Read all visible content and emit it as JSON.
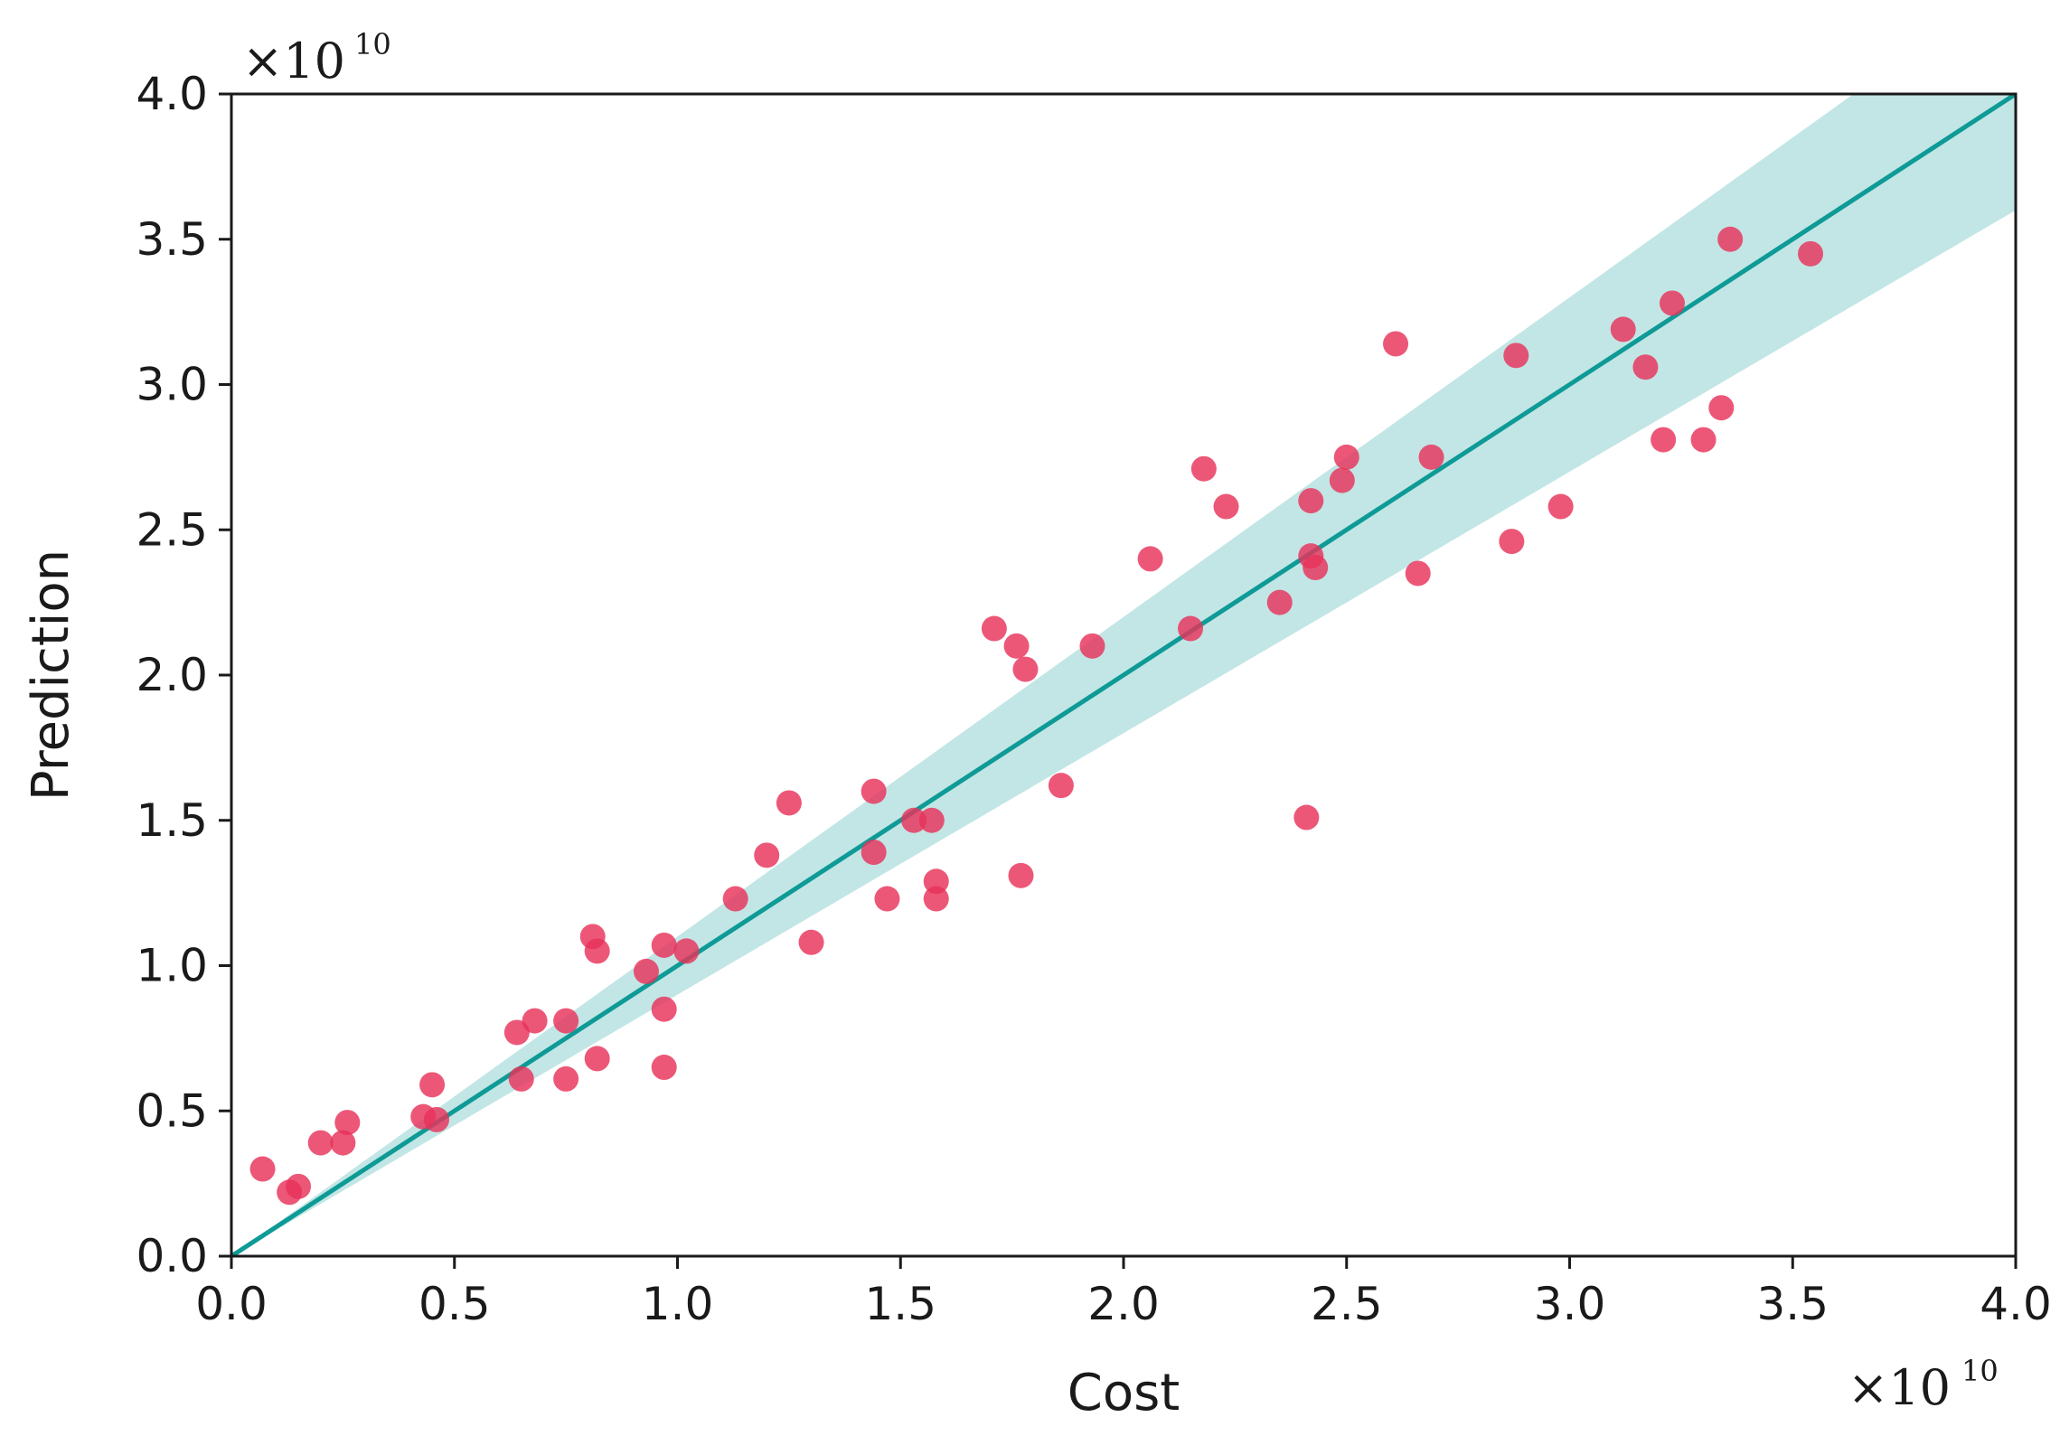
{
  "chart_data": {
    "type": "scatter",
    "title": "",
    "xlabel": "Cost",
    "ylabel": "Prediction",
    "x_scale_label": "×10",
    "x_scale_exp": "10",
    "y_scale_label": "×10",
    "y_scale_exp": "10",
    "xlim": [
      0,
      4.0
    ],
    "ylim": [
      0,
      4.0
    ],
    "xticks": [
      "0.0",
      "0.5",
      "1.0",
      "1.5",
      "2.0",
      "2.5",
      "3.0",
      "3.5",
      "4.0"
    ],
    "yticks": [
      "0.0",
      "0.5",
      "1.0",
      "1.5",
      "2.0",
      "2.5",
      "3.0",
      "3.5",
      "4.0"
    ],
    "grid": false,
    "colors": {
      "points": "#e8325a",
      "line": "#0e9a96",
      "band": "#8fd2d0"
    },
    "reference_line": {
      "x": [
        0,
        4.0
      ],
      "y": [
        0,
        4.0
      ]
    },
    "band": {
      "lower_slope": 0.9,
      "upper_slope": 1.1
    },
    "points": [
      [
        0.07,
        0.3
      ],
      [
        0.13,
        0.22
      ],
      [
        0.15,
        0.24
      ],
      [
        0.2,
        0.39
      ],
      [
        0.25,
        0.39
      ],
      [
        0.26,
        0.46
      ],
      [
        0.43,
        0.48
      ],
      [
        0.45,
        0.59
      ],
      [
        0.46,
        0.47
      ],
      [
        0.64,
        0.77
      ],
      [
        0.65,
        0.61
      ],
      [
        0.68,
        0.81
      ],
      [
        0.75,
        0.81
      ],
      [
        0.75,
        0.61
      ],
      [
        0.81,
        1.1
      ],
      [
        0.82,
        1.05
      ],
      [
        0.82,
        0.68
      ],
      [
        0.93,
        0.98
      ],
      [
        0.97,
        1.07
      ],
      [
        0.97,
        0.85
      ],
      [
        0.97,
        0.65
      ],
      [
        1.02,
        1.05
      ],
      [
        1.13,
        1.23
      ],
      [
        1.2,
        1.38
      ],
      [
        1.25,
        1.56
      ],
      [
        1.3,
        1.08
      ],
      [
        1.44,
        1.6
      ],
      [
        1.44,
        1.39
      ],
      [
        1.47,
        1.23
      ],
      [
        1.53,
        1.5
      ],
      [
        1.57,
        1.5
      ],
      [
        1.58,
        1.29
      ],
      [
        1.58,
        1.23
      ],
      [
        1.71,
        2.16
      ],
      [
        1.76,
        2.1
      ],
      [
        1.77,
        1.31
      ],
      [
        1.78,
        2.02
      ],
      [
        1.86,
        1.62
      ],
      [
        1.93,
        2.1
      ],
      [
        2.06,
        2.4
      ],
      [
        2.15,
        2.16
      ],
      [
        2.18,
        2.71
      ],
      [
        2.23,
        2.58
      ],
      [
        2.35,
        2.25
      ],
      [
        2.41,
        1.51
      ],
      [
        2.42,
        2.6
      ],
      [
        2.42,
        2.41
      ],
      [
        2.43,
        2.37
      ],
      [
        2.49,
        2.67
      ],
      [
        2.5,
        2.75
      ],
      [
        2.61,
        3.14
      ],
      [
        2.66,
        2.35
      ],
      [
        2.69,
        2.75
      ],
      [
        2.87,
        2.46
      ],
      [
        2.88,
        3.1
      ],
      [
        2.98,
        2.58
      ],
      [
        3.12,
        3.19
      ],
      [
        3.17,
        3.06
      ],
      [
        3.21,
        2.81
      ],
      [
        3.23,
        3.28
      ],
      [
        3.3,
        2.81
      ],
      [
        3.34,
        2.92
      ],
      [
        3.36,
        3.5
      ],
      [
        3.54,
        3.45
      ]
    ]
  }
}
